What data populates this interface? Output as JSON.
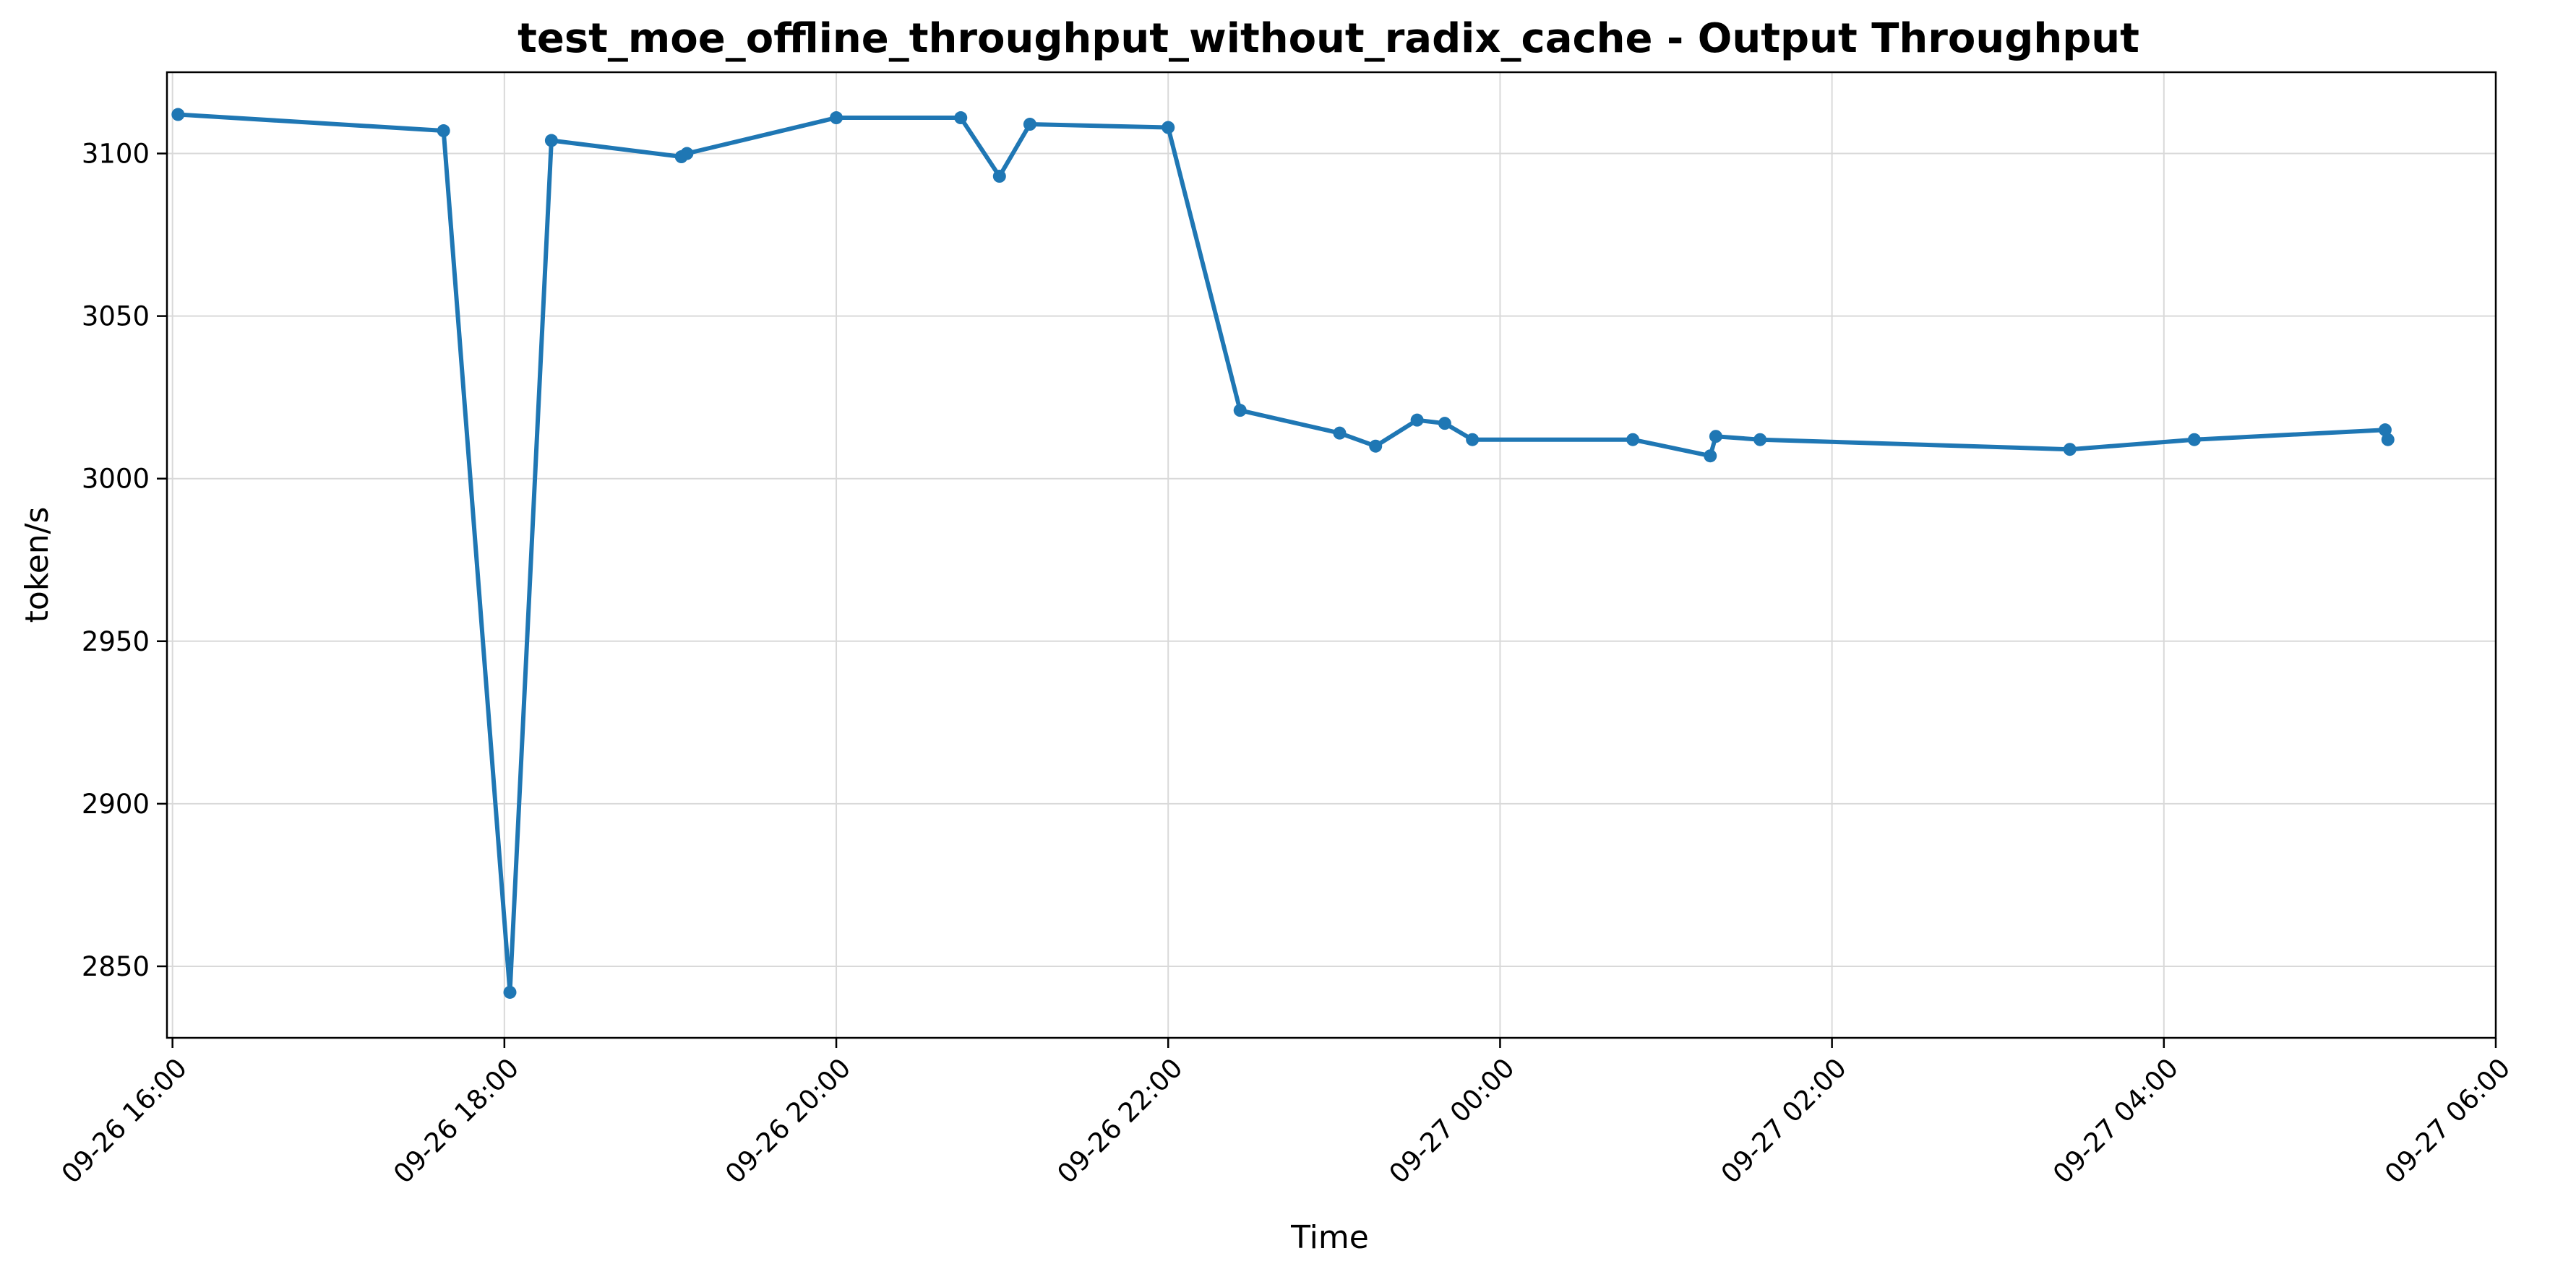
{
  "chart_data": {
    "type": "line",
    "title": "test_moe_offline_throughput_without_radix_cache - Output Throughput",
    "xlabel": "Time",
    "ylabel": "token/s",
    "ylim": [
      2828,
      3125
    ],
    "xlim": [
      "09-26 15:58",
      "09-27 06:00"
    ],
    "grid": true,
    "x_ticks": [
      "09-26 16:00",
      "09-26 18:00",
      "09-26 20:00",
      "09-26 22:00",
      "09-27 00:00",
      "09-27 02:00",
      "09-27 04:00",
      "09-27 06:00"
    ],
    "y_ticks": [
      2850,
      2900,
      2950,
      3000,
      3050,
      3100
    ],
    "colors": {
      "line": "#1f77b4"
    },
    "series": [
      {
        "x": [
          "09-26 16:02",
          "09-26 17:38",
          "09-26 18:02",
          "09-26 18:17",
          "09-26 19:04",
          "09-26 19:06",
          "09-26 20:00",
          "09-26 20:45",
          "09-26 20:59",
          "09-26 21:10",
          "09-26 22:00",
          "09-26 22:26",
          "09-26 23:02",
          "09-26 23:15",
          "09-26 23:30",
          "09-26 23:40",
          "09-26 23:50",
          "09-27 00:48",
          "09-27 01:16",
          "09-27 01:18",
          "09-27 01:34",
          "09-27 03:26",
          "09-27 04:11",
          "09-27 05:20",
          "09-27 05:21"
        ],
        "values": [
          3112,
          3107,
          2842,
          3104,
          3099,
          3100,
          3111,
          3111,
          3093,
          3109,
          3108,
          3021,
          3014,
          3010,
          3018,
          3017,
          3012,
          3012,
          3007,
          3013,
          3012,
          3009,
          3012,
          3015,
          3012
        ]
      }
    ]
  }
}
